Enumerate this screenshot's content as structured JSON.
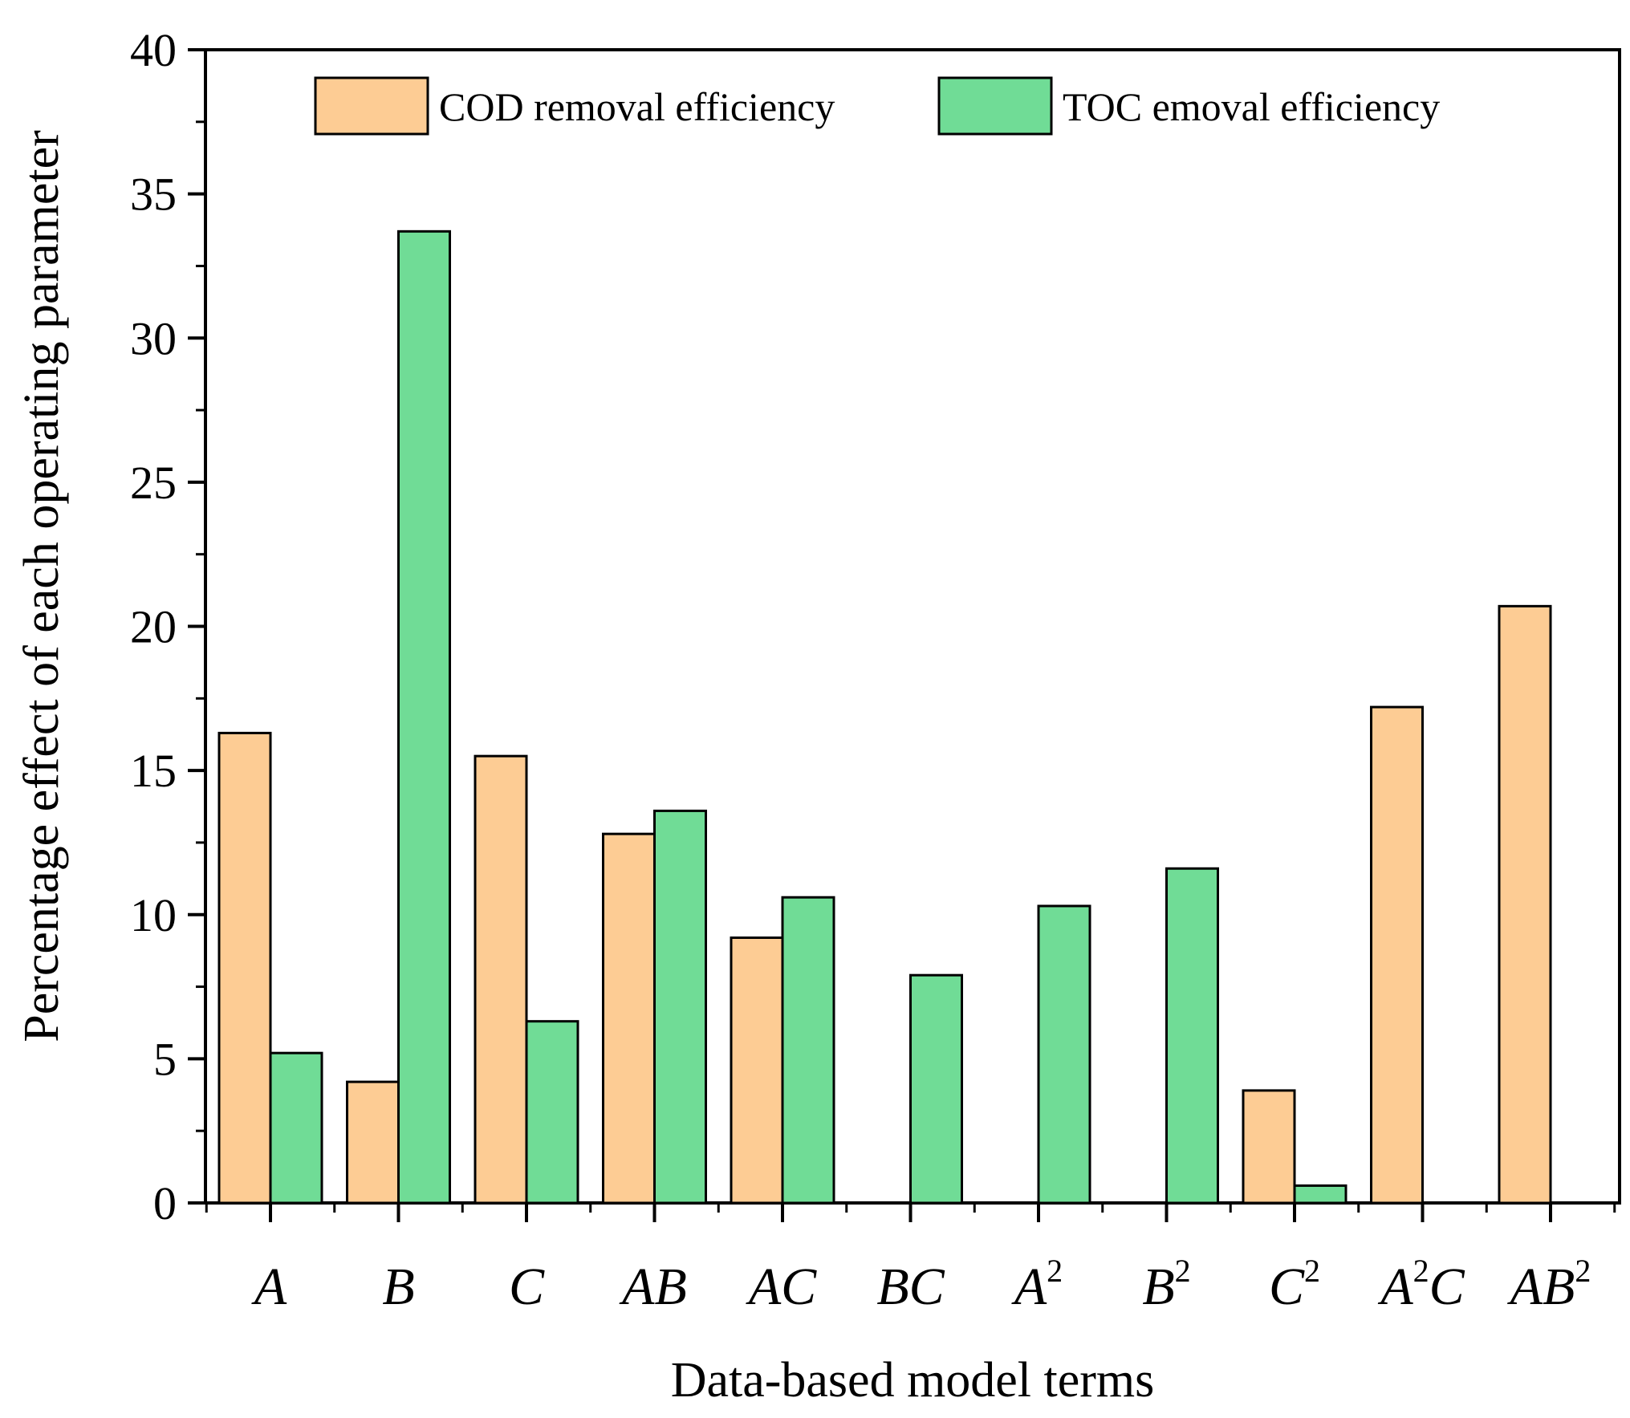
{
  "chart_data": {
    "type": "bar",
    "title": "",
    "xlabel": "Data-based model terms",
    "ylabel": "Percentage effect of each operating parameter",
    "ylim": [
      0,
      40
    ],
    "yticks": [
      "0",
      "5",
      "10",
      "15",
      "20",
      "25",
      "30",
      "35",
      "40"
    ],
    "ytick_values": [
      0,
      5,
      10,
      15,
      20,
      25,
      30,
      35,
      40
    ],
    "categories": [
      {
        "base": "A",
        "sup": "",
        "tail": ""
      },
      {
        "base": "B",
        "sup": "",
        "tail": ""
      },
      {
        "base": "C",
        "sup": "",
        "tail": ""
      },
      {
        "base": "AB",
        "sup": "",
        "tail": ""
      },
      {
        "base": "AC",
        "sup": "",
        "tail": ""
      },
      {
        "base": "BC",
        "sup": "",
        "tail": ""
      },
      {
        "base": "A",
        "sup": "2",
        "tail": ""
      },
      {
        "base": "B",
        "sup": "2",
        "tail": ""
      },
      {
        "base": "C",
        "sup": "2",
        "tail": ""
      },
      {
        "base": "A",
        "sup": "2",
        "tail": "C"
      },
      {
        "base": "AB",
        "sup": "2",
        "tail": ""
      }
    ],
    "series": [
      {
        "name": "COD removal efficiency",
        "color": "#FDCC94",
        "values": [
          16.3,
          4.2,
          15.5,
          12.8,
          9.2,
          0,
          0,
          0,
          3.9,
          17.2,
          20.7
        ]
      },
      {
        "name": "TOC emoval efficiency",
        "color": "#70DC96",
        "values": [
          5.2,
          33.7,
          6.3,
          13.6,
          10.6,
          7.9,
          10.3,
          11.6,
          0.6,
          0,
          0
        ]
      }
    ],
    "legend_position": "top",
    "grid": false
  }
}
